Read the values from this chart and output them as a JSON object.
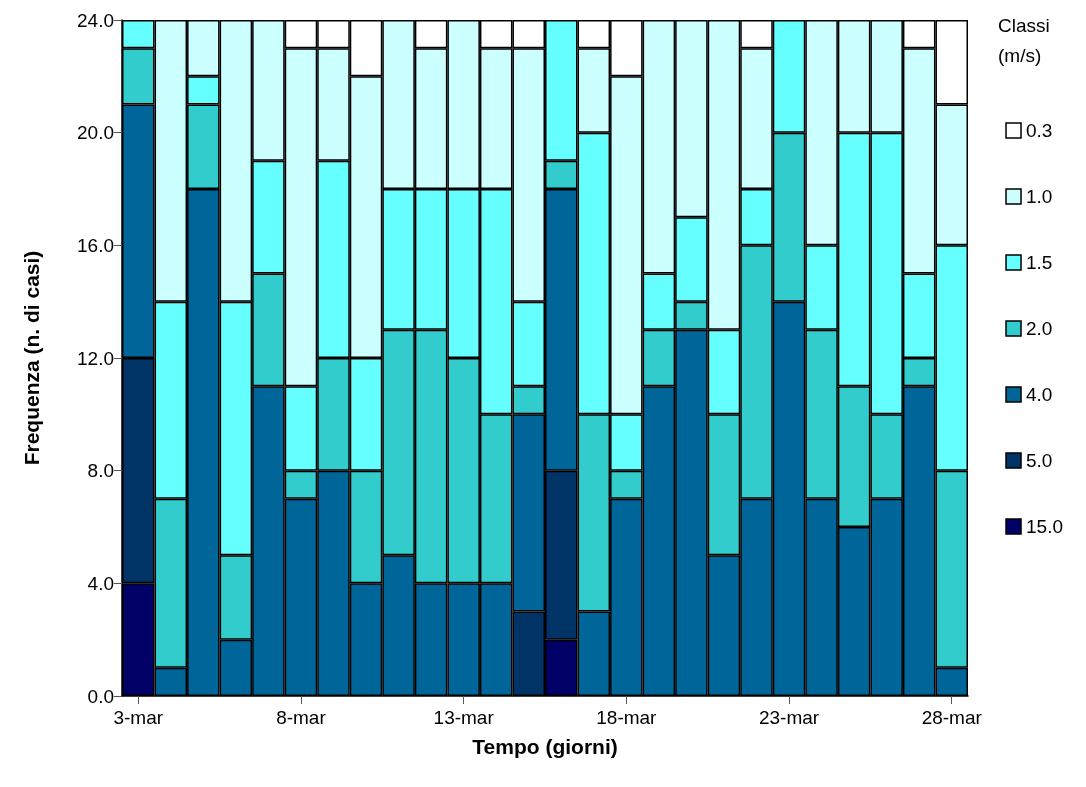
{
  "chart_data": {
    "type": "bar",
    "stacked": true,
    "xlabel": "Tempo (giorni)",
    "ylabel": "Frequenza (n. di casi)",
    "legend_title": "Classi (m/s)",
    "legend": "right",
    "grid": false,
    "categories": [
      "3-mar",
      null,
      null,
      null,
      null,
      "8-mar",
      null,
      null,
      null,
      null,
      "13-mar",
      null,
      null,
      null,
      null,
      "18-mar",
      null,
      null,
      null,
      null,
      "23-mar",
      null,
      null,
      null,
      null,
      "28-mar"
    ],
    "ylim": [
      0,
      24
    ],
    "yticks": [
      {
        "value": 0,
        "label": "0.0"
      },
      {
        "value": 4,
        "label": "4.0"
      },
      {
        "value": 8,
        "label": "8.0"
      },
      {
        "value": 12,
        "label": "12.0"
      },
      {
        "value": 16,
        "label": "16.0"
      },
      {
        "value": 20,
        "label": "20.0"
      },
      {
        "value": 24,
        "label": "24.0"
      }
    ],
    "series": [
      {
        "name": "15.0",
        "color": "#000066",
        "values": [
          4,
          0,
          0,
          0,
          0,
          0,
          0,
          0,
          0,
          0,
          0,
          0,
          0,
          2,
          0,
          0,
          0,
          0,
          0,
          0,
          0,
          0,
          0,
          0,
          0,
          0
        ]
      },
      {
        "name": "5.0",
        "color": "#003366",
        "values": [
          8,
          0,
          0,
          0,
          0,
          0,
          0,
          0,
          0,
          0,
          0,
          0,
          3,
          6,
          0,
          0,
          0,
          0,
          0,
          0,
          0,
          0,
          0,
          0,
          0,
          0
        ]
      },
      {
        "name": "4.0",
        "color": "#006699",
        "values": [
          9,
          1,
          18,
          2,
          11,
          7,
          8,
          4,
          5,
          4,
          4,
          4,
          7,
          10,
          3,
          7,
          11,
          13,
          5,
          7,
          14,
          7,
          6,
          7,
          11,
          1
        ]
      },
      {
        "name": "2.0",
        "color": "#33cccc",
        "values": [
          2,
          6,
          3,
          3,
          4,
          1,
          4,
          4,
          8,
          9,
          8,
          6,
          1,
          1,
          7,
          1,
          2,
          1,
          5,
          9,
          6,
          6,
          5,
          3,
          1,
          7
        ]
      },
      {
        "name": "1.5",
        "color": "#66ffff",
        "values": [
          1,
          7,
          1,
          9,
          4,
          3,
          7,
          4,
          5,
          5,
          6,
          8,
          3,
          5,
          10,
          2,
          2,
          3,
          3,
          2,
          4,
          3,
          9,
          10,
          3,
          8
        ]
      },
      {
        "name": "1.0",
        "color": "#ccffff",
        "values": [
          0,
          10,
          2,
          10,
          5,
          12,
          4,
          10,
          6,
          5,
          6,
          5,
          9,
          0,
          3,
          12,
          9,
          7,
          11,
          5,
          0,
          8,
          4,
          4,
          8,
          5
        ]
      },
      {
        "name": "0.3",
        "color": "#ffffff",
        "values": [
          0,
          0,
          0,
          0,
          0,
          1,
          1,
          2,
          0,
          1,
          0,
          1,
          1,
          0,
          1,
          2,
          0,
          0,
          0,
          1,
          0,
          0,
          0,
          0,
          1,
          3
        ]
      }
    ]
  }
}
